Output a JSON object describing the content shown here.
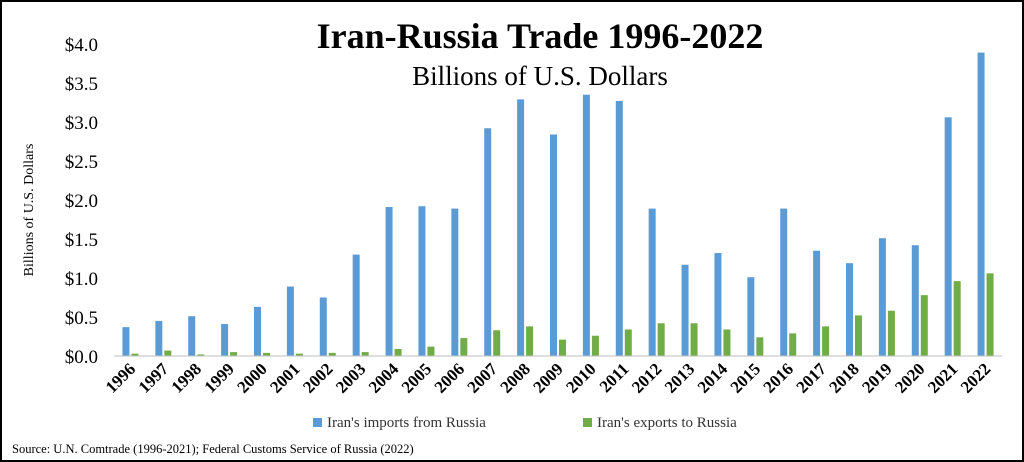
{
  "chart_data": {
    "type": "bar",
    "title": "Iran-Russia Trade 1996-2022",
    "subtitle": "Billions of U.S. Dollars",
    "ylabel": "Billions of U.S. Dollars",
    "xlabel": "",
    "ylim": [
      0,
      4.0
    ],
    "yticks": [
      "$0.0",
      "$0.5",
      "$1.0",
      "$1.5",
      "$2.0",
      "$2.5",
      "$3.0",
      "$3.5",
      "$4.0"
    ],
    "grid": false,
    "legend_position": "bottom",
    "categories": [
      "1996",
      "1997",
      "1998",
      "1999",
      "2000",
      "2001",
      "2002",
      "2003",
      "2004",
      "2005",
      "2006",
      "2007",
      "2008",
      "2009",
      "2010",
      "2011",
      "2012",
      "2013",
      "2014",
      "2015",
      "2016",
      "2017",
      "2018",
      "2019",
      "2020",
      "2021",
      "2022"
    ],
    "series": [
      {
        "name": "Iran's imports from Russia",
        "color": "#5b9bd5",
        "values": [
          0.37,
          0.45,
          0.51,
          0.41,
          0.63,
          0.89,
          0.75,
          1.3,
          1.91,
          1.92,
          1.89,
          2.92,
          3.29,
          2.84,
          3.35,
          3.27,
          1.89,
          1.17,
          1.32,
          1.01,
          1.89,
          1.35,
          1.19,
          1.51,
          1.42,
          3.06,
          3.89
        ]
      },
      {
        "name": "Iran's exports to Russia",
        "color": "#70ad47",
        "values": [
          0.03,
          0.07,
          0.02,
          0.05,
          0.04,
          0.03,
          0.04,
          0.05,
          0.09,
          0.12,
          0.23,
          0.33,
          0.38,
          0.21,
          0.26,
          0.34,
          0.42,
          0.42,
          0.34,
          0.24,
          0.29,
          0.38,
          0.52,
          0.58,
          0.78,
          0.96,
          1.06
        ]
      }
    ],
    "source": "Source: U.N. Comtrade (1996-2021);  Federal Customs Service of Russia (2022)"
  }
}
